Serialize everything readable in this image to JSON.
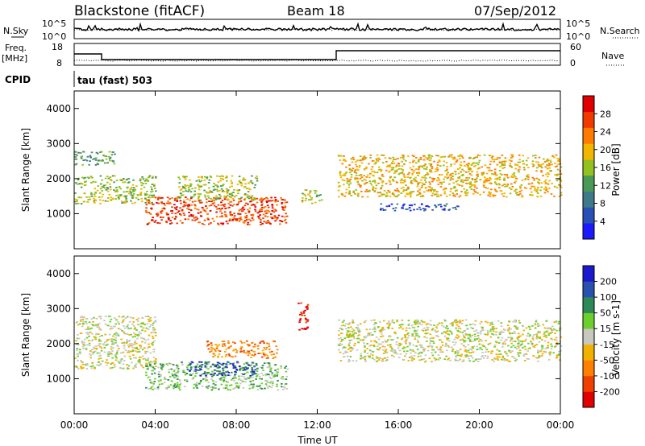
{
  "header": {
    "station": "Blackstone (fitACF)",
    "beam": "Beam 18",
    "date": "07/Sep/2012"
  },
  "aux": {
    "nsky_label": "N.Sky",
    "nsky_exp_hi": "10^5",
    "nsky_exp_lo": "10^0",
    "nsearch_label": "N.Search",
    "nsearch_exp_hi": "10^5",
    "nsearch_exp_lo": "10^0",
    "freq_label": "Freq.",
    "freq_unit": "[MHz]",
    "freq_ticks": [
      "18",
      "8"
    ],
    "nave_label": "Nave",
    "nave_ticks": [
      "60",
      "0"
    ],
    "cpid_label": "CPID",
    "cpid_text": "tau (fast) 503"
  },
  "colors": {
    "power": [
      "#1a1aff",
      "#2a4fb5",
      "#3f7a8a",
      "#4a9a55",
      "#93c11e",
      "#f2b500",
      "#ff7a00",
      "#f03a00",
      "#e00000"
    ],
    "velocity": [
      "#e00000",
      "#f04000",
      "#ff8000",
      "#f2b000",
      "#c8c8c0",
      "#6ccf2e",
      "#2e8a55",
      "#2a50b0",
      "#1a1acc"
    ]
  },
  "chart_data": [
    {
      "type": "heatmap",
      "name": "Power",
      "ylabel": "Slant Range [km]",
      "x_ticks": [
        "00:00",
        "04:00",
        "08:00",
        "12:00",
        "16:00",
        "20:00",
        "00:00"
      ],
      "y_ticks": [
        1000,
        2000,
        3000,
        4000
      ],
      "ylim": [
        0,
        4500
      ],
      "xlim_hours": [
        0,
        24
      ],
      "colorbar_label": "Power [dB]",
      "colorbar_ticks": [
        "28",
        "24",
        "20",
        "16",
        "12",
        "8",
        "4"
      ],
      "scatter_bands": [
        {
          "t": [
            0,
            4
          ],
          "r": [
            1300,
            2100
          ],
          "level": 4
        },
        {
          "t": [
            0,
            2
          ],
          "r": [
            2400,
            2800
          ],
          "level": 3
        },
        {
          "t": [
            3.5,
            10.5
          ],
          "r": [
            700,
            1500
          ],
          "level": 7
        },
        {
          "t": [
            5,
            9
          ],
          "r": [
            1400,
            2100
          ],
          "level": 4
        },
        {
          "t": [
            11.2,
            12.2
          ],
          "r": [
            1300,
            1700
          ],
          "level": 4
        },
        {
          "t": [
            13,
            24
          ],
          "r": [
            1500,
            2700
          ],
          "level": 5
        },
        {
          "t": [
            15,
            19
          ],
          "r": [
            1100,
            1300
          ],
          "level": 1
        }
      ]
    },
    {
      "type": "heatmap",
      "name": "Velocity",
      "ylabel": "Slant Range [km]",
      "xlabel": "Time UT",
      "x_ticks": [
        "00:00",
        "04:00",
        "08:00",
        "12:00",
        "16:00",
        "20:00",
        "00:00"
      ],
      "y_ticks": [
        1000,
        2000,
        3000,
        4000
      ],
      "ylim": [
        0,
        4500
      ],
      "xlim_hours": [
        0,
        24
      ],
      "colorbar_label": "Velocity [m s-1]",
      "colorbar_ticks": [
        "200",
        "100",
        "50",
        "15",
        "-15",
        "-50",
        "-100",
        "-200"
      ],
      "scatter_bands": [
        {
          "t": [
            0,
            4
          ],
          "r": [
            1300,
            2800
          ],
          "level": 4
        },
        {
          "t": [
            3.5,
            10.5
          ],
          "r": [
            700,
            1500
          ],
          "level": 5
        },
        {
          "t": [
            5.5,
            9
          ],
          "r": [
            1100,
            1500
          ],
          "level": 7
        },
        {
          "t": [
            6.5,
            10
          ],
          "r": [
            1600,
            2100
          ],
          "level": 2
        },
        {
          "t": [
            11,
            11.5
          ],
          "r": [
            2400,
            3200
          ],
          "level": 0
        },
        {
          "t": [
            13,
            24
          ],
          "r": [
            1500,
            2700
          ],
          "level": 4
        }
      ]
    }
  ]
}
